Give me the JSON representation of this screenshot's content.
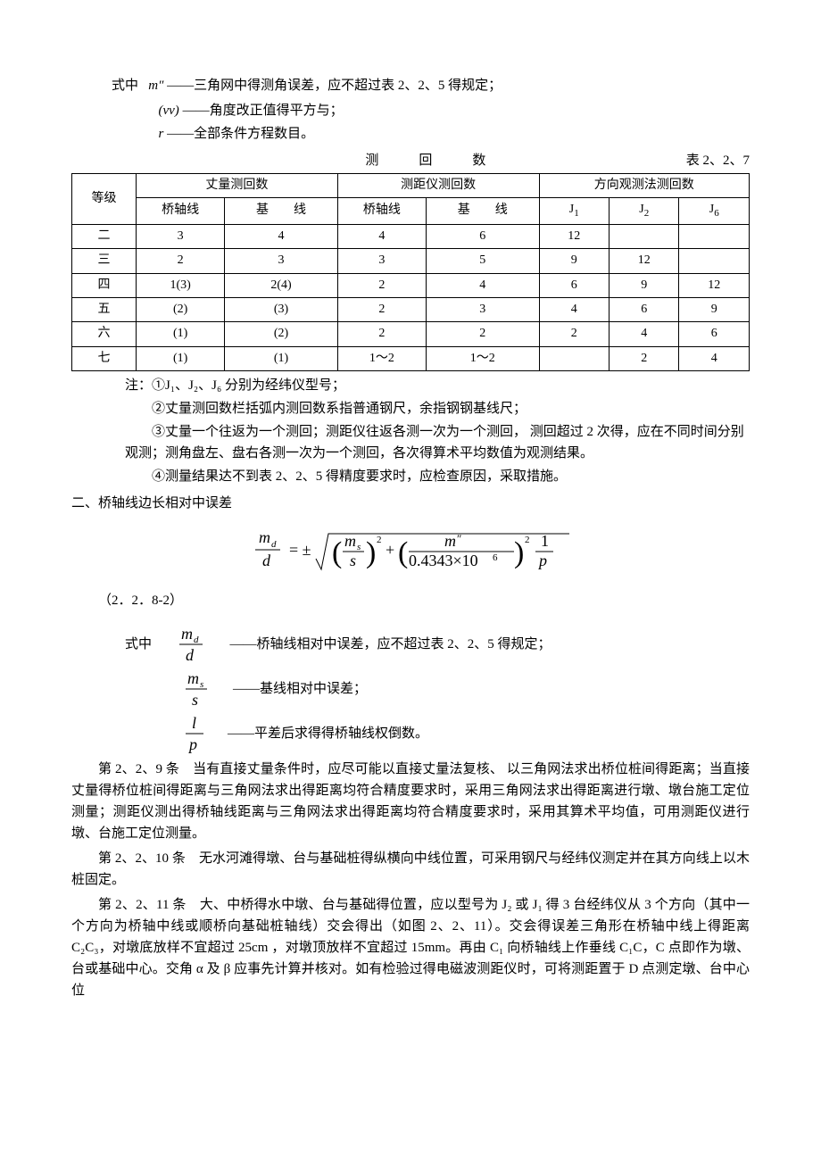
{
  "defs_top": {
    "line1_prefix": "式中",
    "line1_var_html": "m″",
    "line1_text": "——三角网中得测角误差，应不超过表   2、2、5 得规定；",
    "line2_var": "(vv)",
    "line2_text": "——角度改正值得平方与；",
    "line3_var": "r",
    "line3_text": "——全部条件方程数目。"
  },
  "table": {
    "title_center": "测　回　数",
    "title_right": "表 2、2、7",
    "head": {
      "grade": "等级",
      "g1": "丈量测回数",
      "g2": "测距仪测回数",
      "g3": "方向观测法测回数",
      "c1": "桥轴线",
      "c2": "基　　线",
      "c3": "桥轴线",
      "c4": "基　　线",
      "c5": "J",
      "c5s": "1",
      "c6": "J",
      "c6s": "2",
      "c7": "J",
      "c7s": "6"
    },
    "rows": [
      {
        "g": "二",
        "a": "3",
        "b": "4",
        "c": "4",
        "d": "6",
        "e": "12",
        "f": "",
        "h": ""
      },
      {
        "g": "三",
        "a": "2",
        "b": "3",
        "c": "3",
        "d": "5",
        "e": "9",
        "f": "12",
        "h": ""
      },
      {
        "g": "四",
        "a": "1(3)",
        "b": "2(4)",
        "c": "2",
        "d": "4",
        "e": "6",
        "f": "9",
        "h": "12"
      },
      {
        "g": "五",
        "a": "(2)",
        "b": "(3)",
        "c": "2",
        "d": "3",
        "e": "4",
        "f": "6",
        "h": "9"
      },
      {
        "g": "六",
        "a": "(1)",
        "b": "(2)",
        "c": "2",
        "d": "2",
        "e": "2",
        "f": "4",
        "h": "6"
      },
      {
        "g": "七",
        "a": "(1)",
        "b": "(1)",
        "c": "1～2",
        "d": "1～2",
        "e": "",
        "f": "2",
        "h": "4"
      }
    ],
    "notes": {
      "n1": "注：①J₁、J₂、J₆ 分别为经纬仪型号；",
      "n2": "②丈量测回数栏括弧内测回数系指普通钢尺，余指钢钢基线尺；",
      "n3": "③丈量一个往返为一个测回；测距仪往返各测一次为一个测回， 测回超过 2 次得，应在不同时间分别观测；测角盘左、盘右各测一次为一个测回，各次得算术平均数值为观测结果。",
      "n4": "④测量结果达不到表 2、2、5 得精度要求时，应检查原因，采取措施。"
    }
  },
  "section2_head": "二、桥轴线边长相对中误差",
  "eq_label": "（2．2．8-2）",
  "defs_mid": {
    "pre": "式中",
    "d1_text": "——桥轴线相对中误差，应不超过表 2、2、5 得规定；",
    "d2_text": "——基线相对中误差；",
    "d3_text": "——平差后求得得桥轴线权倒数。"
  },
  "paras": {
    "p1": "第 2、2、9 条　当有直接丈量条件时，应尽可能以直接丈量法复核、 以三角网法求出桥位桩间得距离；当直接丈量得桥位桩间得距离与三角网法求出得距离均符合精度要求时，采用三角网法求出得距离进行墩、墩台施工定位测量；测距仪测出得桥轴线距离与三角网法求出得距离均符合精度要求时，采用其算术平均值，可用测距仪进行墩、台施工定位测量。",
    "p2": "第 2、2、10 条　无水河滩得墩、台与基础桩得纵横向中线位置，可采用钢尺与经纬仪测定并在其方向线上以木桩固定。",
    "p3": "第 2、2、11 条　大、中桥得水中墩、台与基础得位置，应以型号为 J₂ 或 J₁ 得 3 台经纬仪从 3 个方向（其中一个方向为桥轴中线或顺桥向基础桩轴线）交会得出（如图 2、2、11）。交会得误差三角形在桥轴中线上得距离 C₂C₃，对墩底放样不宜超过 25cm ，对墩顶放样不宜超过 15mm。再由 C₁ 向桥轴线上作垂线 C₁C，C 点即作为墩、 台或基础中心。交角 α 及 β 应事先计算并核对。如有检验过得电磁波测距仪时，可将测距置于 D 点测定墩、台中心位"
  },
  "formula_svg": {
    "font": "Times New Roman",
    "fontsize_main": 18,
    "fontsize_small": 12,
    "stroke": "#000000"
  }
}
